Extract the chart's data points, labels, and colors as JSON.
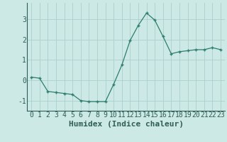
{
  "x": [
    0,
    1,
    2,
    3,
    4,
    5,
    6,
    7,
    8,
    9,
    10,
    11,
    12,
    13,
    14,
    15,
    16,
    17,
    18,
    19,
    20,
    21,
    22,
    23
  ],
  "y": [
    0.15,
    0.1,
    -0.55,
    -0.6,
    -0.65,
    -0.7,
    -1.0,
    -1.05,
    -1.05,
    -1.05,
    -0.2,
    0.75,
    1.95,
    2.7,
    3.3,
    2.95,
    2.15,
    1.3,
    1.4,
    1.45,
    1.5,
    1.5,
    1.6,
    1.5
  ],
  "xlabel": "Humidex (Indice chaleur)",
  "ylim": [
    -1.5,
    3.8
  ],
  "xlim": [
    -0.5,
    23.5
  ],
  "line_color": "#2e7d6e",
  "marker": "+",
  "bg_color": "#cce9e5",
  "grid_color": "#aacfcc",
  "axis_color": "#2e5d55",
  "xlabel_fontsize": 8,
  "tick_fontsize": 7,
  "yticks": [
    -1,
    0,
    1,
    2,
    3
  ],
  "xticks": [
    0,
    1,
    2,
    3,
    4,
    5,
    6,
    7,
    8,
    9,
    10,
    11,
    12,
    13,
    14,
    15,
    16,
    17,
    18,
    19,
    20,
    21,
    22,
    23
  ]
}
